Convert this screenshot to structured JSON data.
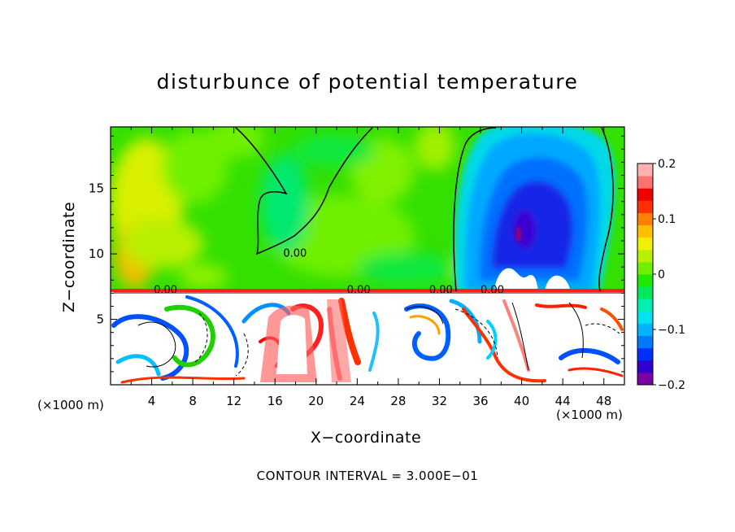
{
  "chart_data": {
    "type": "heatmap",
    "title": "disturbunce of potential temperature",
    "xlabel": "X−coordinate",
    "ylabel": "Z−coordinate",
    "x_unit": "(×1000 m)",
    "x_ticks": [
      4,
      8,
      12,
      16,
      20,
      24,
      28,
      32,
      36,
      40,
      44,
      48
    ],
    "y_ticks": [
      5,
      10,
      15
    ],
    "xlim": [
      0,
      50
    ],
    "ylim": [
      0,
      19.7
    ],
    "colorbar": {
      "ticks": [
        "0.2",
        "0.1",
        "0",
        "−0.1",
        "−0.2"
      ],
      "tick_values": [
        0.2,
        0.1,
        0,
        -0.1,
        -0.2
      ],
      "range": [
        -0.2,
        0.2
      ],
      "colors": [
        "#7b00a6",
        "#3000cc",
        "#0030ff",
        "#0078ff",
        "#00b4ff",
        "#00e4f0",
        "#00f0b0",
        "#00e860",
        "#20e800",
        "#70f000",
        "#b8f000",
        "#f0f000",
        "#ffc000",
        "#ff8000",
        "#ff3000",
        "#f00000",
        "#ff7070",
        "#ffb0b0"
      ]
    },
    "contour_labels": [
      {
        "text": "0.00",
        "x": 16.8,
        "y": 9.8
      },
      {
        "text": "0.00",
        "x": 4.2,
        "y": 7.0
      },
      {
        "text": "0.00",
        "x": 23.0,
        "y": 7.0
      },
      {
        "text": "0.00",
        "x": 31.0,
        "y": 7.0
      },
      {
        "text": "0.00",
        "x": 36.0,
        "y": 7.0
      }
    ],
    "contour_interval_text": "CONTOUR INTERVAL = 3.000E−01"
  },
  "colors": {
    "background": "#ffffff",
    "frame": "#000000",
    "upper_field": "#30e000"
  }
}
